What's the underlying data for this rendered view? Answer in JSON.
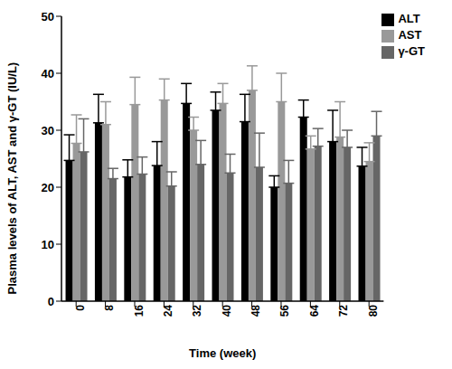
{
  "chart_data": {
    "type": "bar",
    "x_label": "Time (week)",
    "y_label": "Plasma levels of ALT, AST and γ-GT (IU/L)",
    "categories": [
      "0",
      "8",
      "16",
      "24",
      "32",
      "40",
      "48",
      "56",
      "64",
      "72",
      "80"
    ],
    "series": [
      {
        "name": "ALT",
        "color": "#000000",
        "values": [
          24.7,
          31.3,
          21.8,
          23.8,
          34.7,
          33.5,
          31.5,
          20.0,
          32.3,
          28.0,
          23.7
        ],
        "errors": [
          4.5,
          5.0,
          3.0,
          4.2,
          3.5,
          3.2,
          4.8,
          2.0,
          3.0,
          5.5,
          3.3
        ]
      },
      {
        "name": "AST",
        "color": "#999999",
        "values": [
          27.7,
          31.0,
          34.5,
          35.3,
          30.0,
          34.7,
          37.0,
          35.0,
          26.7,
          28.8,
          24.5
        ],
        "errors": [
          5.0,
          4.0,
          4.8,
          3.7,
          2.3,
          3.5,
          4.3,
          5.0,
          2.3,
          6.2,
          3.3
        ]
      },
      {
        "name": "γ-GT",
        "color": "#666666",
        "values": [
          26.2,
          21.5,
          22.3,
          20.2,
          24.0,
          22.5,
          23.5,
          20.7,
          27.2,
          27.0,
          29.0
        ],
        "errors": [
          5.8,
          1.8,
          3.0,
          2.5,
          4.2,
          3.3,
          6.0,
          4.0,
          3.1,
          3.0,
          4.3
        ]
      }
    ],
    "ylim": [
      0,
      50
    ],
    "yticks": [
      0,
      10,
      20,
      30,
      40,
      50
    ],
    "grid": false,
    "legend": "top-right"
  }
}
